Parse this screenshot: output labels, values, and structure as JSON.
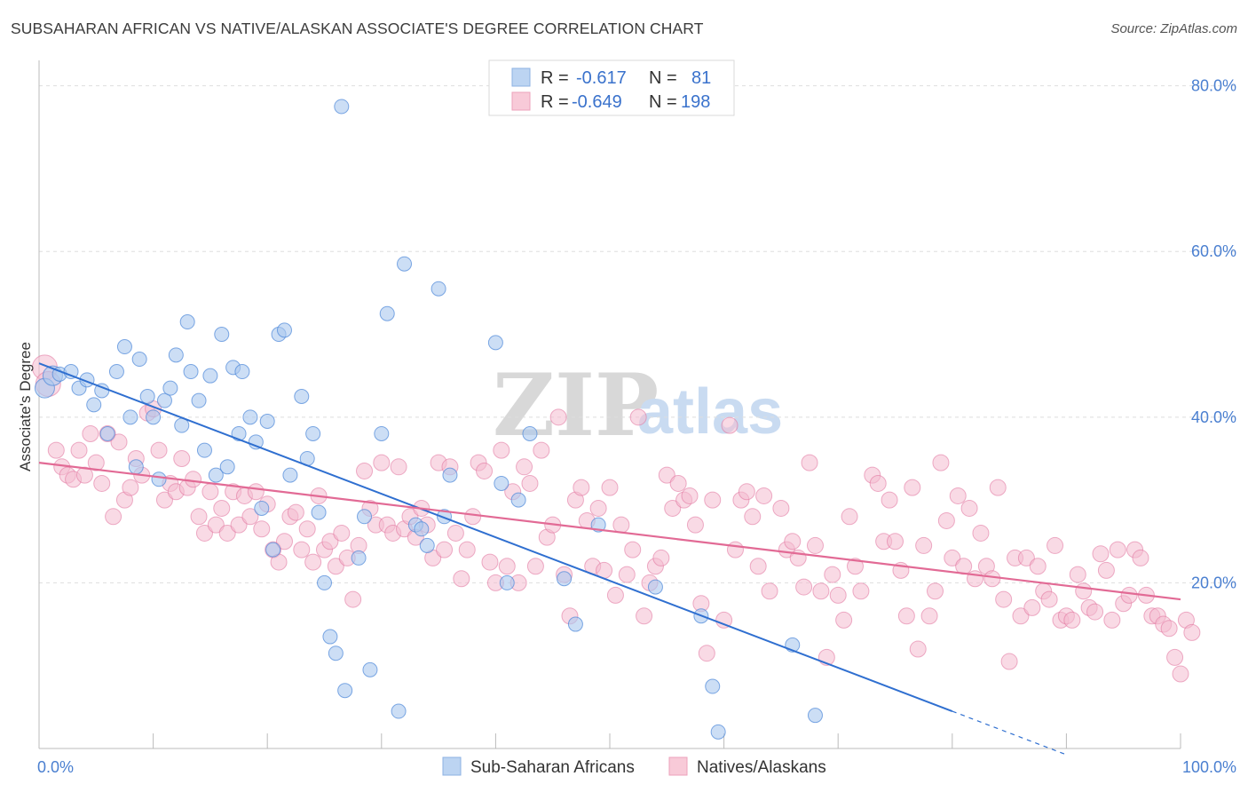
{
  "header": {
    "title": "SUBSAHARAN AFRICAN VS NATIVE/ALASKAN ASSOCIATE'S DEGREE CORRELATION CHART",
    "source": "Source: ZipAtlas.com"
  },
  "watermark": {
    "zip": "ZIP",
    "atlas": "atlas"
  },
  "legend": {
    "rows": [
      {
        "r_label": "R =",
        "r_value": "-0.617",
        "n_label": "N =",
        "n_value": "81",
        "color": "#a8c8f0"
      },
      {
        "r_label": "R =",
        "r_value": "-0.649",
        "n_label": "N =",
        "n_value": "198",
        "color": "#f4b8cc"
      }
    ]
  },
  "bottom_legend": [
    "Sub-Saharan Africans",
    "Natives/Alaskans"
  ],
  "chart_data": {
    "type": "scatter",
    "title": "SUBSAHARAN AFRICAN VS NATIVE/ALASKAN ASSOCIATE'S DEGREE CORRELATION CHART",
    "xlabel": "",
    "ylabel": "Associate's Degree",
    "xlim": [
      0,
      100
    ],
    "ylim": [
      0,
      82
    ],
    "x_tick_labels": [
      "0.0%",
      "100.0%"
    ],
    "y_ticks": [
      20,
      40,
      60,
      80
    ],
    "y_tick_labels": [
      "20.0%",
      "40.0%",
      "60.0%",
      "80.0%"
    ],
    "grid": true,
    "colors": {
      "blue": "#4a86d8",
      "blue_fill": "#aac8ee",
      "pink": "#e0709a",
      "pink_fill": "#f4bccf",
      "blue_line": "#2f6fd0",
      "pink_line": "#e26a95"
    },
    "series": [
      {
        "name": "Sub-Saharan Africans",
        "trend": {
          "x0": 0,
          "y0": 46.5,
          "x1": 80,
          "y1": 4.5,
          "dash_to_x": 90,
          "dash_to_y": -0.75
        },
        "points": [
          [
            0.5,
            43.5
          ],
          [
            1.2,
            45
          ],
          [
            1.8,
            45.2
          ],
          [
            2.8,
            45.5
          ],
          [
            3.5,
            43.5
          ],
          [
            4.2,
            44.5
          ],
          [
            4.8,
            41.5
          ],
          [
            5.5,
            43.2
          ],
          [
            6,
            38
          ],
          [
            6.8,
            45.5
          ],
          [
            7.5,
            48.5
          ],
          [
            8,
            40
          ],
          [
            8.5,
            34
          ],
          [
            8.8,
            47
          ],
          [
            9.5,
            42.5
          ],
          [
            10,
            40
          ],
          [
            10.5,
            32.5
          ],
          [
            11,
            42
          ],
          [
            11.5,
            43.5
          ],
          [
            12,
            47.5
          ],
          [
            12.5,
            39
          ],
          [
            13,
            51.5
          ],
          [
            13.3,
            45.5
          ],
          [
            14,
            42
          ],
          [
            14.5,
            36
          ],
          [
            15,
            45
          ],
          [
            15.5,
            33
          ],
          [
            16,
            50
          ],
          [
            16.5,
            34
          ],
          [
            17,
            46
          ],
          [
            17.5,
            38
          ],
          [
            17.8,
            45.5
          ],
          [
            18.5,
            40
          ],
          [
            19,
            37
          ],
          [
            19.5,
            29
          ],
          [
            20,
            39.5
          ],
          [
            20.5,
            24
          ],
          [
            21,
            50
          ],
          [
            21.5,
            50.5
          ],
          [
            22,
            33
          ],
          [
            23,
            42.5
          ],
          [
            23.5,
            35
          ],
          [
            24,
            38
          ],
          [
            24.5,
            28.5
          ],
          [
            25,
            20
          ],
          [
            25.5,
            13.5
          ],
          [
            26,
            11.5
          ],
          [
            26.5,
            77.5
          ],
          [
            26.8,
            7
          ],
          [
            28,
            23
          ],
          [
            28.5,
            28
          ],
          [
            29,
            9.5
          ],
          [
            30,
            38
          ],
          [
            30.5,
            52.5
          ],
          [
            31.5,
            4.5
          ],
          [
            32,
            58.5
          ],
          [
            33,
            27
          ],
          [
            33.5,
            26.5
          ],
          [
            34,
            24.5
          ],
          [
            35,
            55.5
          ],
          [
            35.5,
            28
          ],
          [
            36,
            33
          ],
          [
            40,
            49
          ],
          [
            40.5,
            32
          ],
          [
            41,
            20
          ],
          [
            42,
            30
          ],
          [
            43,
            38
          ],
          [
            46,
            20.5
          ],
          [
            47,
            15
          ],
          [
            49,
            27
          ],
          [
            54,
            19.5
          ],
          [
            58,
            16
          ],
          [
            59,
            7.5
          ],
          [
            59.5,
            2
          ],
          [
            66,
            12.5
          ],
          [
            68,
            4
          ]
        ]
      },
      {
        "name": "Natives/Alaskans",
        "trend": {
          "x0": 0,
          "y0": 34.5,
          "x1": 100,
          "y1": 18
        },
        "points": [
          [
            0.5,
            46
          ],
          [
            0.8,
            44
          ],
          [
            1.5,
            36
          ],
          [
            2,
            34
          ],
          [
            2.5,
            33
          ],
          [
            3,
            32.5
          ],
          [
            3.5,
            36
          ],
          [
            4,
            33
          ],
          [
            4.5,
            38
          ],
          [
            5,
            34.5
          ],
          [
            5.5,
            32
          ],
          [
            6,
            38
          ],
          [
            6.5,
            28
          ],
          [
            7,
            37
          ],
          [
            7.5,
            30
          ],
          [
            8,
            31.5
          ],
          [
            8.5,
            35
          ],
          [
            9,
            33
          ],
          [
            9.5,
            40.5
          ],
          [
            10,
            41
          ],
          [
            10.5,
            36
          ],
          [
            11,
            30
          ],
          [
            11.5,
            32
          ],
          [
            12,
            31
          ],
          [
            12.5,
            35
          ],
          [
            13,
            31.5
          ],
          [
            13.5,
            32.5
          ],
          [
            14,
            28
          ],
          [
            14.5,
            26
          ],
          [
            15,
            31
          ],
          [
            15.5,
            27
          ],
          [
            16,
            29
          ],
          [
            16.5,
            26
          ],
          [
            17,
            31
          ],
          [
            17.5,
            27
          ],
          [
            18,
            30.5
          ],
          [
            18.5,
            28
          ],
          [
            19,
            31
          ],
          [
            19.5,
            26.5
          ],
          [
            20,
            29.5
          ],
          [
            20.5,
            24
          ],
          [
            21,
            22.5
          ],
          [
            21.5,
            25
          ],
          [
            22,
            28
          ],
          [
            22.5,
            28.5
          ],
          [
            23,
            24
          ],
          [
            23.5,
            26.5
          ],
          [
            24,
            22.5
          ],
          [
            24.5,
            30.5
          ],
          [
            25,
            24
          ],
          [
            25.5,
            25
          ],
          [
            26,
            22
          ],
          [
            26.5,
            26
          ],
          [
            27,
            23
          ],
          [
            27.5,
            18
          ],
          [
            28,
            24.5
          ],
          [
            28.5,
            33.5
          ],
          [
            29,
            29
          ],
          [
            29.5,
            27
          ],
          [
            30,
            34.5
          ],
          [
            30.5,
            27
          ],
          [
            31,
            26
          ],
          [
            31.5,
            34
          ],
          [
            32,
            26.5
          ],
          [
            32.5,
            28
          ],
          [
            33,
            25.5
          ],
          [
            33.5,
            29
          ],
          [
            34,
            27
          ],
          [
            34.5,
            23
          ],
          [
            35,
            34.5
          ],
          [
            35.5,
            24
          ],
          [
            36,
            34
          ],
          [
            36.5,
            26
          ],
          [
            37,
            20.5
          ],
          [
            37.5,
            24
          ],
          [
            38,
            28
          ],
          [
            38.5,
            34.5
          ],
          [
            39,
            33.5
          ],
          [
            39.5,
            22.5
          ],
          [
            40,
            20
          ],
          [
            40.5,
            36
          ],
          [
            41,
            22
          ],
          [
            41.5,
            31
          ],
          [
            42,
            20
          ],
          [
            42.5,
            34
          ],
          [
            43,
            32
          ],
          [
            43.5,
            22
          ],
          [
            44,
            36
          ],
          [
            44.5,
            25.5
          ],
          [
            45,
            27
          ],
          [
            45.5,
            40
          ],
          [
            46,
            21
          ],
          [
            46.5,
            16
          ],
          [
            47,
            30
          ],
          [
            47.5,
            31.5
          ],
          [
            48,
            27.5
          ],
          [
            48.5,
            22
          ],
          [
            49,
            29
          ],
          [
            49.5,
            21.5
          ],
          [
            50,
            31.5
          ],
          [
            50.5,
            18.5
          ],
          [
            51,
            27
          ],
          [
            51.5,
            21
          ],
          [
            52,
            24
          ],
          [
            52.5,
            40
          ],
          [
            53,
            16
          ],
          [
            53.5,
            20
          ],
          [
            54,
            22
          ],
          [
            54.5,
            23
          ],
          [
            55,
            33
          ],
          [
            55.5,
            29
          ],
          [
            56,
            32
          ],
          [
            56.5,
            30
          ],
          [
            57,
            30.5
          ],
          [
            57.5,
            27
          ],
          [
            58,
            17.5
          ],
          [
            58.5,
            11.5
          ],
          [
            59,
            30
          ],
          [
            60,
            15.5
          ],
          [
            60.5,
            39
          ],
          [
            61,
            24
          ],
          [
            61.5,
            30
          ],
          [
            62,
            31
          ],
          [
            62.5,
            28
          ],
          [
            63,
            22
          ],
          [
            63.5,
            30.5
          ],
          [
            64,
            19
          ],
          [
            65,
            29
          ],
          [
            65.5,
            24
          ],
          [
            66,
            25
          ],
          [
            66.5,
            23
          ],
          [
            67,
            19.5
          ],
          [
            67.5,
            34.5
          ],
          [
            68,
            24.5
          ],
          [
            68.5,
            19
          ],
          [
            69,
            11
          ],
          [
            69.5,
            21
          ],
          [
            70,
            18.5
          ],
          [
            70.5,
            15.5
          ],
          [
            71,
            28
          ],
          [
            71.5,
            22
          ],
          [
            72,
            19
          ],
          [
            73,
            33
          ],
          [
            73.5,
            32
          ],
          [
            74,
            25
          ],
          [
            74.5,
            30
          ],
          [
            75,
            25
          ],
          [
            75.5,
            21.5
          ],
          [
            76,
            16
          ],
          [
            76.5,
            31.5
          ],
          [
            77,
            12
          ],
          [
            77.5,
            24.5
          ],
          [
            78,
            16
          ],
          [
            78.5,
            19
          ],
          [
            79,
            34.5
          ],
          [
            79.5,
            27.5
          ],
          [
            80,
            23
          ],
          [
            80.5,
            30.5
          ],
          [
            81,
            22
          ],
          [
            81.5,
            29
          ],
          [
            82,
            20.5
          ],
          [
            82.5,
            26
          ],
          [
            83,
            22
          ],
          [
            83.5,
            20.5
          ],
          [
            84,
            31.5
          ],
          [
            84.5,
            18
          ],
          [
            85,
            10.5
          ],
          [
            85.5,
            23
          ],
          [
            86,
            16
          ],
          [
            86.5,
            23
          ],
          [
            87,
            17
          ],
          [
            87.5,
            22
          ],
          [
            88,
            19
          ],
          [
            88.5,
            18
          ],
          [
            89,
            24.5
          ],
          [
            89.5,
            15.5
          ],
          [
            90,
            16
          ],
          [
            90.5,
            15.5
          ],
          [
            91,
            21
          ],
          [
            91.5,
            19
          ],
          [
            92,
            17
          ],
          [
            92.5,
            16.5
          ],
          [
            93,
            23.5
          ],
          [
            93.5,
            21.5
          ],
          [
            94,
            15.5
          ],
          [
            94.5,
            24
          ],
          [
            95,
            17.5
          ],
          [
            95.5,
            18.5
          ],
          [
            96,
            24
          ],
          [
            96.5,
            23
          ],
          [
            97,
            18.5
          ],
          [
            97.5,
            16
          ],
          [
            98,
            16
          ],
          [
            98.5,
            15
          ],
          [
            99,
            14.5
          ],
          [
            99.5,
            11
          ],
          [
            100,
            9
          ],
          [
            100.5,
            15.5
          ],
          [
            101,
            14
          ]
        ]
      }
    ]
  }
}
